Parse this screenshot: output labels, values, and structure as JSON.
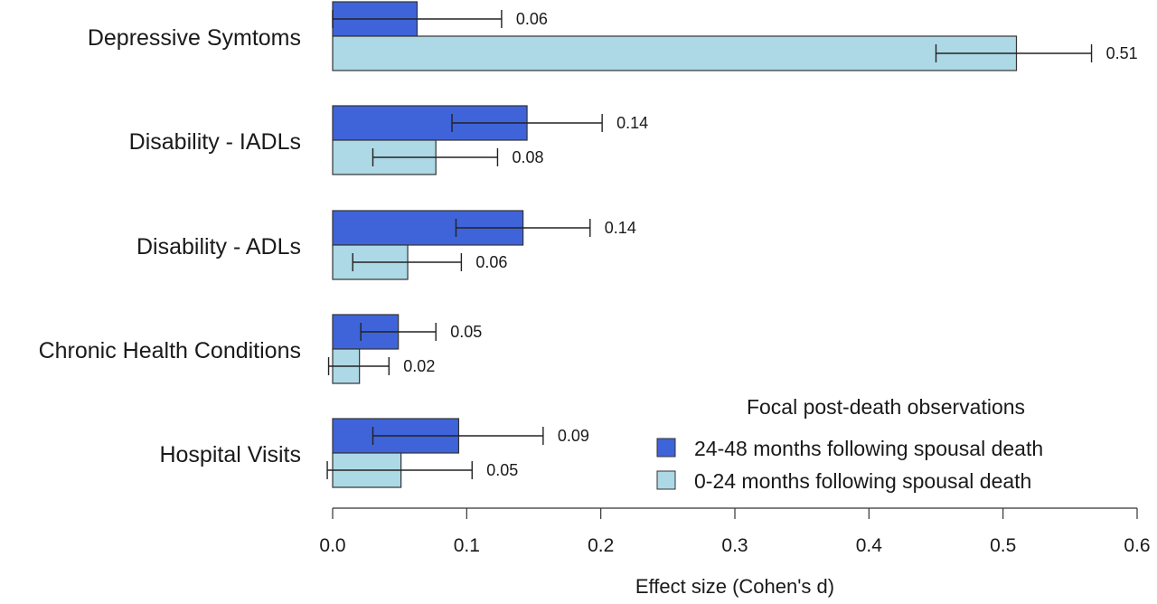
{
  "chart_data": {
    "type": "bar",
    "orientation": "horizontal",
    "categories": [
      "Depressive Symtoms",
      "Disability - IADLs",
      "Disability - ADLs",
      "Chronic Health Conditions",
      "Hospital Visits"
    ],
    "series": [
      {
        "name": "24-48 months following spousal death",
        "color": "#3f64d9",
        "values": [
          0.063,
          0.145,
          0.142,
          0.049,
          0.094
        ],
        "labels": [
          "0.06",
          "0.14",
          "0.14",
          "0.05",
          "0.09"
        ],
        "ci_low": [
          0.0,
          0.089,
          0.092,
          0.021,
          0.03
        ],
        "ci_high": [
          0.126,
          0.201,
          0.192,
          0.077,
          0.157
        ]
      },
      {
        "name": "0-24 months following spousal death",
        "color": "#add8e6",
        "values": [
          0.51,
          0.077,
          0.056,
          0.02,
          0.051
        ],
        "labels": [
          "0.51",
          "0.08",
          "0.06",
          "0.02",
          "0.05"
        ],
        "ci_low": [
          0.45,
          0.03,
          0.015,
          -0.003,
          -0.004
        ],
        "ci_high": [
          0.566,
          0.123,
          0.096,
          0.042,
          0.104
        ]
      }
    ],
    "xlabel": "Effect size (Cohen's d)",
    "xlim": [
      0,
      0.6
    ],
    "xticks": [
      "0.0",
      "0.1",
      "0.2",
      "0.3",
      "0.4",
      "0.5",
      "0.6"
    ],
    "legend": {
      "title": "Focal post-death observations",
      "position": "bottom-right"
    },
    "grid": false
  }
}
